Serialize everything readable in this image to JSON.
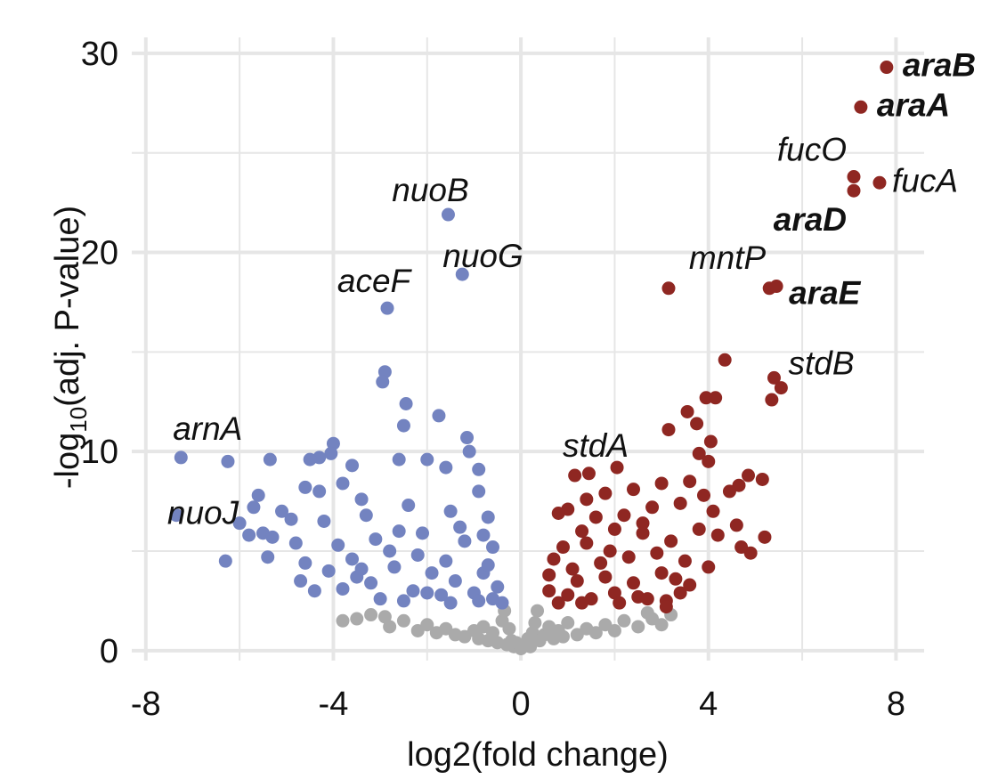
{
  "chart_data": {
    "type": "scatter",
    "xlabel": "log2(fold change)",
    "ylabel": {
      "pre": "-log",
      "sub": "10",
      "post": "(adj. P-value)"
    },
    "xlim": [
      -8.3,
      8.6
    ],
    "ylim": [
      -0.5,
      30.8
    ],
    "x_ticks": [
      -8,
      -4,
      0,
      4,
      8
    ],
    "x_tick_labels": [
      "-8",
      "-4",
      "0",
      "4",
      "8"
    ],
    "y_ticks": [
      0,
      10,
      20,
      30
    ],
    "y_tick_labels": [
      "0",
      "10",
      "20",
      "30"
    ],
    "grid": true,
    "colors": {
      "down": "#7383c0",
      "up": "#8f2722",
      "ns": "#aaaaaa",
      "grid": "#e6e6e6"
    },
    "series": [
      {
        "group": "ns",
        "points": [
          [
            -3.5,
            1.6
          ],
          [
            -3.2,
            1.8
          ],
          [
            -2.8,
            1.2
          ],
          [
            -2.5,
            1.5
          ],
          [
            -2.2,
            1.0
          ],
          [
            -2.0,
            1.3
          ],
          [
            -1.8,
            0.9
          ],
          [
            -1.6,
            1.1
          ],
          [
            -1.4,
            0.8
          ],
          [
            -1.2,
            0.7
          ],
          [
            -1.0,
            1.0
          ],
          [
            -0.9,
            0.6
          ],
          [
            -0.8,
            1.2
          ],
          [
            -0.7,
            0.5
          ],
          [
            -0.6,
            0.9
          ],
          [
            -0.5,
            0.4
          ],
          [
            -0.4,
            1.5
          ],
          [
            -0.35,
            2.0
          ],
          [
            -0.3,
            0.3
          ],
          [
            -0.25,
            1.1
          ],
          [
            -0.2,
            0.5
          ],
          [
            -0.15,
            0.2
          ],
          [
            -0.1,
            0.4
          ],
          [
            0.0,
            0.1
          ],
          [
            0.1,
            0.3
          ],
          [
            0.15,
            0.6
          ],
          [
            0.2,
            0.2
          ],
          [
            0.25,
            0.9
          ],
          [
            0.3,
            1.4
          ],
          [
            0.35,
            2.0
          ],
          [
            0.4,
            0.5
          ],
          [
            0.5,
            0.8
          ],
          [
            0.6,
            1.2
          ],
          [
            0.7,
            0.6
          ],
          [
            0.8,
            1.0
          ],
          [
            0.9,
            0.7
          ],
          [
            1.0,
            1.4
          ],
          [
            1.2,
            0.8
          ],
          [
            1.4,
            1.1
          ],
          [
            1.6,
            0.9
          ],
          [
            1.8,
            1.3
          ],
          [
            2.0,
            1.0
          ],
          [
            2.2,
            1.5
          ],
          [
            2.5,
            1.2
          ],
          [
            2.8,
            1.6
          ],
          [
            3.0,
            1.3
          ],
          [
            3.2,
            1.8
          ],
          [
            -2.9,
            1.7
          ],
          [
            2.7,
            1.9
          ],
          [
            -3.8,
            1.5
          ]
        ]
      },
      {
        "group": "down",
        "points": [
          [
            -1.55,
            21.9
          ],
          [
            -1.25,
            18.9
          ],
          [
            -2.85,
            17.2
          ],
          [
            -2.9,
            14.0
          ],
          [
            -2.95,
            13.5
          ],
          [
            -2.45,
            12.4
          ],
          [
            -1.75,
            11.8
          ],
          [
            -2.5,
            11.3
          ],
          [
            -1.15,
            10.7
          ],
          [
            -1.1,
            10.0
          ],
          [
            -7.25,
            9.7
          ],
          [
            -6.25,
            9.5
          ],
          [
            -7.35,
            6.8
          ],
          [
            -6.3,
            4.5
          ],
          [
            -4.0,
            10.4
          ],
          [
            -4.05,
            9.9
          ],
          [
            -4.3,
            9.7
          ],
          [
            -5.35,
            9.6
          ],
          [
            -3.6,
            9.3
          ],
          [
            -4.5,
            9.6
          ],
          [
            -2.6,
            9.6
          ],
          [
            -2.0,
            9.6
          ],
          [
            -0.9,
            9.1
          ],
          [
            -1.6,
            9.2
          ],
          [
            -4.6,
            8.2
          ],
          [
            -4.3,
            8.0
          ],
          [
            -3.8,
            8.4
          ],
          [
            -3.4,
            7.6
          ],
          [
            -5.6,
            7.8
          ],
          [
            -5.7,
            7.2
          ],
          [
            -5.1,
            7.0
          ],
          [
            -4.9,
            6.6
          ],
          [
            -4.2,
            6.5
          ],
          [
            -3.3,
            6.8
          ],
          [
            -2.4,
            7.3
          ],
          [
            -1.5,
            7.0
          ],
          [
            -0.9,
            8.0
          ],
          [
            -0.7,
            6.7
          ],
          [
            -6.0,
            6.4
          ],
          [
            -5.5,
            5.9
          ],
          [
            -5.3,
            5.7
          ],
          [
            -5.8,
            5.8
          ],
          [
            -4.8,
            5.4
          ],
          [
            -3.9,
            5.3
          ],
          [
            -3.1,
            5.6
          ],
          [
            -2.1,
            5.9
          ],
          [
            -1.2,
            5.5
          ],
          [
            -0.6,
            5.2
          ],
          [
            -5.4,
            4.7
          ],
          [
            -4.6,
            4.4
          ],
          [
            -4.1,
            4.0
          ],
          [
            -3.5,
            3.7
          ],
          [
            -2.7,
            4.2
          ],
          [
            -1.9,
            3.9
          ],
          [
            -1.4,
            3.5
          ],
          [
            -0.8,
            3.9
          ],
          [
            -0.5,
            3.2
          ],
          [
            -4.7,
            3.5
          ],
          [
            -4.4,
            3.0
          ],
          [
            -3.8,
            3.1
          ],
          [
            -3.2,
            3.4
          ],
          [
            -2.3,
            3.0
          ],
          [
            -1.7,
            2.8
          ],
          [
            -1.0,
            2.9
          ],
          [
            -0.6,
            2.6
          ],
          [
            -3.0,
            2.6
          ],
          [
            -2.5,
            2.5
          ],
          [
            -2.0,
            2.9
          ],
          [
            -1.5,
            2.4
          ],
          [
            -0.9,
            2.5
          ],
          [
            -0.4,
            2.4
          ],
          [
            -3.6,
            4.6
          ],
          [
            -2.8,
            5.0
          ],
          [
            -2.2,
            4.8
          ],
          [
            -1.6,
            4.5
          ],
          [
            -0.7,
            4.3
          ],
          [
            -3.4,
            4.1
          ],
          [
            -1.3,
            6.2
          ],
          [
            -2.6,
            6.0
          ],
          [
            -0.8,
            5.8
          ]
        ]
      },
      {
        "group": "up",
        "points": [
          [
            7.8,
            29.3
          ],
          [
            7.25,
            27.3
          ],
          [
            7.1,
            23.8
          ],
          [
            7.65,
            23.5
          ],
          [
            7.1,
            23.1
          ],
          [
            3.15,
            18.2
          ],
          [
            5.3,
            18.2
          ],
          [
            5.45,
            18.3
          ],
          [
            4.35,
            14.6
          ],
          [
            5.4,
            13.7
          ],
          [
            5.55,
            13.2
          ],
          [
            5.35,
            12.6
          ],
          [
            3.95,
            12.7
          ],
          [
            4.15,
            12.7
          ],
          [
            3.55,
            12.0
          ],
          [
            3.15,
            11.1
          ],
          [
            3.75,
            11.4
          ],
          [
            4.05,
            10.5
          ],
          [
            3.8,
            9.9
          ],
          [
            4.0,
            9.5
          ],
          [
            2.05,
            9.2
          ],
          [
            1.45,
            8.9
          ],
          [
            1.15,
            8.8
          ],
          [
            4.85,
            8.8
          ],
          [
            5.15,
            8.6
          ],
          [
            4.65,
            8.3
          ],
          [
            4.45,
            8.0
          ],
          [
            3.6,
            8.5
          ],
          [
            3.0,
            8.4
          ],
          [
            2.4,
            8.1
          ],
          [
            1.8,
            7.9
          ],
          [
            1.4,
            7.6
          ],
          [
            1.0,
            7.1
          ],
          [
            0.8,
            6.9
          ],
          [
            1.6,
            6.7
          ],
          [
            2.2,
            6.8
          ],
          [
            2.8,
            7.2
          ],
          [
            3.4,
            7.4
          ],
          [
            4.1,
            7.0
          ],
          [
            4.6,
            6.3
          ],
          [
            5.2,
            5.7
          ],
          [
            4.9,
            4.9
          ],
          [
            4.7,
            5.2
          ],
          [
            4.2,
            5.8
          ],
          [
            3.8,
            6.1
          ],
          [
            3.2,
            5.5
          ],
          [
            2.6,
            5.9
          ],
          [
            2.0,
            6.1
          ],
          [
            1.4,
            5.4
          ],
          [
            0.9,
            5.2
          ],
          [
            0.7,
            4.6
          ],
          [
            1.1,
            4.1
          ],
          [
            1.7,
            4.4
          ],
          [
            2.3,
            4.7
          ],
          [
            2.9,
            4.9
          ],
          [
            3.5,
            4.5
          ],
          [
            4.0,
            4.2
          ],
          [
            0.6,
            3.8
          ],
          [
            1.2,
            3.5
          ],
          [
            1.8,
            3.7
          ],
          [
            2.4,
            3.4
          ],
          [
            3.0,
            3.9
          ],
          [
            3.6,
            3.3
          ],
          [
            0.6,
            3.0
          ],
          [
            1.0,
            2.8
          ],
          [
            1.5,
            2.6
          ],
          [
            2.0,
            2.9
          ],
          [
            2.5,
            2.7
          ],
          [
            3.1,
            2.5
          ],
          [
            3.4,
            2.9
          ],
          [
            3.1,
            2.2
          ],
          [
            0.8,
            2.4
          ],
          [
            1.3,
            2.4
          ],
          [
            2.1,
            2.4
          ],
          [
            2.7,
            2.6
          ],
          [
            3.3,
            3.6
          ],
          [
            2.6,
            6.4
          ],
          [
            1.9,
            5.0
          ],
          [
            1.3,
            6.0
          ],
          [
            3.9,
            7.8
          ]
        ]
      }
    ],
    "annotations": [
      {
        "text": "araB",
        "bold": true,
        "x": 7.8,
        "y": 29.3
      },
      {
        "text": "araA",
        "bold": true,
        "x": 7.25,
        "y": 27.3
      },
      {
        "text": "fucO",
        "bold": false,
        "x": 7.1,
        "y": 23.8
      },
      {
        "text": "fucA",
        "bold": false,
        "x": 7.65,
        "y": 23.5
      },
      {
        "text": "araD",
        "bold": true,
        "x": 7.1,
        "y": 23.1
      },
      {
        "text": "mntP",
        "bold": false,
        "x": 5.3,
        "y": 18.2
      },
      {
        "text": "araE",
        "bold": true,
        "x": 5.45,
        "y": 18.3
      },
      {
        "text": "stdB",
        "bold": false,
        "x": 5.4,
        "y": 13.7
      },
      {
        "text": "stdA",
        "bold": false,
        "x": 2.05,
        "y": 9.2
      },
      {
        "text": "nuoB",
        "bold": false,
        "x": -1.55,
        "y": 21.9
      },
      {
        "text": "nuoG",
        "bold": false,
        "x": -1.25,
        "y": 18.9
      },
      {
        "text": "aceF",
        "bold": false,
        "x": -2.85,
        "y": 17.2
      },
      {
        "text": "arnA",
        "bold": false,
        "x": -7.25,
        "y": 9.7
      },
      {
        "text": "nuoJ",
        "bold": false,
        "x": -7.35,
        "y": 6.8
      }
    ]
  }
}
